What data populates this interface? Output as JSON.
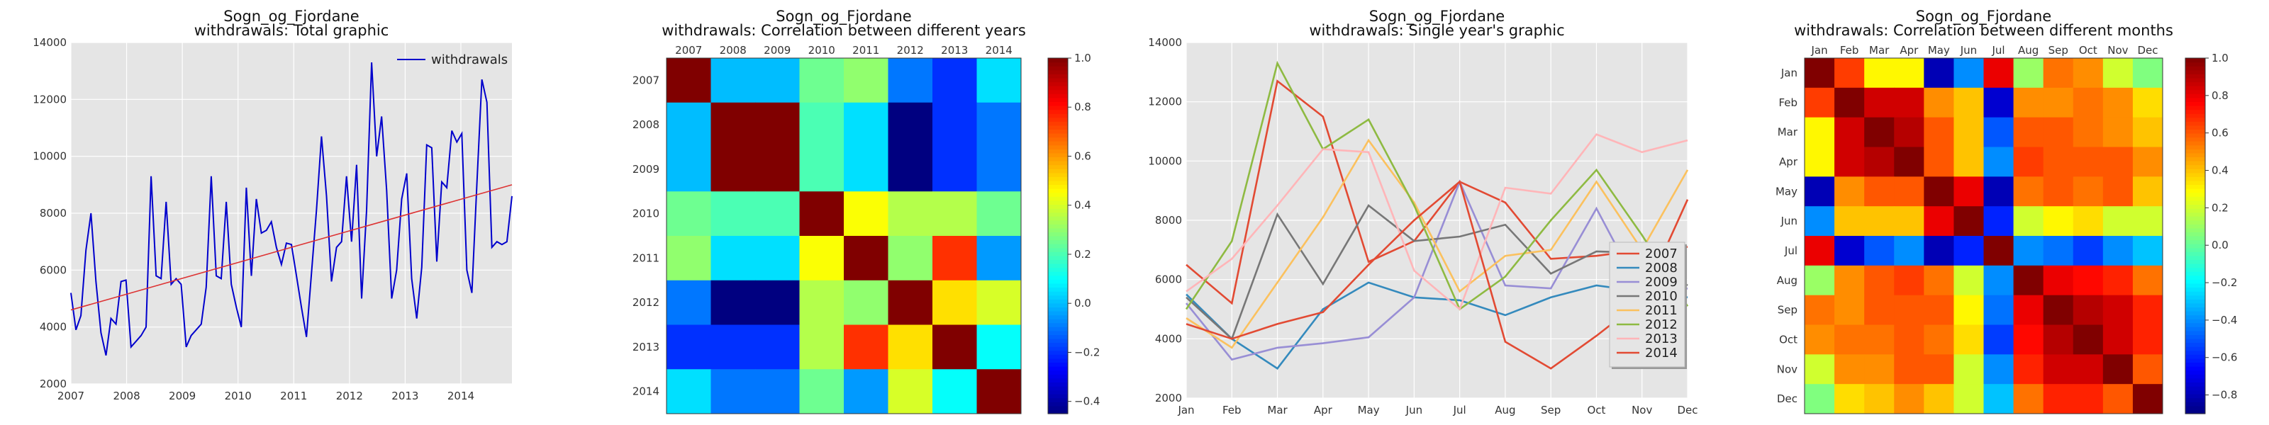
{
  "chart_data": [
    {
      "type": "line",
      "title": "Sogn_og_Fjordane",
      "subtitle": "withdrawals: Total graphic",
      "xlabel": "",
      "ylabel": "",
      "xlim": [
        2007,
        2014.917
      ],
      "ylim": [
        2000,
        14000
      ],
      "xticks": [
        "2007",
        "2008",
        "2009",
        "2010",
        "2011",
        "2012",
        "2013",
        "2014"
      ],
      "yticks": [
        2000,
        4000,
        6000,
        8000,
        10000,
        12000,
        14000
      ],
      "grid": true,
      "legend": "top-right",
      "series": [
        {
          "name": "withdrawals",
          "color": "#0000cc",
          "values": [
            5200,
            3900,
            4400,
            6700,
            8000,
            5600,
            3800,
            3000,
            4300,
            4100,
            5600,
            5650,
            3300,
            3500,
            3700,
            4000,
            9300,
            5800,
            5700,
            8400,
            5500,
            5700,
            5500,
            3300,
            3700,
            3900,
            4100,
            5400,
            9300,
            5800,
            5700,
            8400,
            5500,
            4700,
            4000,
            8900,
            5800,
            8500,
            7300,
            7400,
            7700,
            6800,
            6200,
            6950,
            6900,
            5800,
            4700,
            3650,
            5900,
            8100,
            10700,
            8600,
            5600,
            6800,
            7000,
            9300,
            7000,
            9700,
            5000,
            8100,
            13300,
            10000,
            11400,
            8800,
            5000,
            6000,
            8500,
            9400,
            5700,
            4300,
            6100,
            10400,
            10300,
            6300,
            9100,
            8900,
            10900,
            10500,
            10800,
            6000,
            5200,
            9000,
            12700,
            11900,
            6800,
            7000,
            6900,
            7000,
            8600
          ]
        },
        {
          "name": "",
          "color": "#dd3333",
          "values": [
            4600,
            9000
          ],
          "x": [
            2007,
            2014.917
          ]
        }
      ]
    },
    {
      "type": "heatmap",
      "title": "Sogn_og_Fjordane",
      "subtitle": "withdrawals: Correlation between different years",
      "labels": [
        "2007",
        "2008",
        "2009",
        "2010",
        "2011",
        "2012",
        "2013",
        "2014"
      ],
      "vmin": -0.45,
      "vmax": 1.0,
      "colorbar_ticks": [
        "−0.4",
        "−0.2",
        "0.0",
        "0.2",
        "0.4",
        "0.6",
        "0.8",
        "1.0"
      ],
      "colorbar_values": [
        -0.4,
        -0.2,
        0.0,
        0.2,
        0.4,
        0.6,
        0.8,
        1.0
      ],
      "matrix": [
        [
          1.0,
          0.0,
          0.0,
          0.25,
          0.3,
          -0.1,
          -0.2,
          0.05
        ],
        [
          0.0,
          1.0,
          1.0,
          0.2,
          0.05,
          -0.45,
          -0.2,
          -0.1
        ],
        [
          0.0,
          1.0,
          1.0,
          0.2,
          0.05,
          -0.45,
          -0.2,
          -0.1
        ],
        [
          0.25,
          0.2,
          0.2,
          1.0,
          0.45,
          0.35,
          0.35,
          0.25
        ],
        [
          0.3,
          0.05,
          0.05,
          0.45,
          1.0,
          0.3,
          0.75,
          -0.05
        ],
        [
          -0.1,
          -0.45,
          -0.45,
          0.35,
          0.3,
          1.0,
          0.5,
          0.4
        ],
        [
          -0.2,
          -0.2,
          -0.2,
          0.35,
          0.75,
          0.5,
          1.0,
          0.1
        ],
        [
          0.05,
          -0.1,
          -0.1,
          0.25,
          -0.05,
          0.4,
          0.1,
          1.0
        ]
      ]
    },
    {
      "type": "line",
      "title": "Sogn_og_Fjordane",
      "subtitle": "withdrawals: Single year's graphic",
      "xlabel": "",
      "ylabel": "",
      "categories": [
        "Jan",
        "Feb",
        "Mar",
        "Apr",
        "May",
        "Jun",
        "Jul",
        "Aug",
        "Sep",
        "Oct",
        "Nov",
        "Dec"
      ],
      "ylim": [
        2000,
        14000
      ],
      "yticks": [
        2000,
        4000,
        6000,
        8000,
        10000,
        12000,
        14000
      ],
      "grid": true,
      "legend": "bottom-right",
      "series": [
        {
          "name": "2007",
          "color": "#e24a33",
          "values": [
            6500,
            5200,
            12700,
            11500,
            6600,
            7300,
            9300,
            8600,
            6700,
            6800,
            7000,
            7100
          ]
        },
        {
          "name": "2008",
          "color": "#348abd",
          "values": [
            5500,
            4000,
            3000,
            5000,
            5900,
            5400,
            5300,
            4800,
            5400,
            5800,
            5600,
            5400
          ]
        },
        {
          "name": "2009",
          "color": "#988ed5",
          "values": [
            5200,
            3300,
            3700,
            3850,
            4050,
            5400,
            9300,
            5800,
            5700,
            8400,
            5500,
            5700
          ]
        },
        {
          "name": "2010",
          "color": "#777777",
          "values": [
            5400,
            4000,
            8200,
            5850,
            8500,
            7300,
            7450,
            7850,
            6200,
            6950,
            6900,
            5800
          ]
        },
        {
          "name": "2011",
          "color": "#fbc15e",
          "values": [
            4700,
            3700,
            5900,
            8100,
            10700,
            8600,
            5600,
            6800,
            7000,
            9300,
            7000,
            9700
          ]
        },
        {
          "name": "2012",
          "color": "#8eba42",
          "values": [
            5000,
            7300,
            13300,
            10400,
            11400,
            8500,
            5000,
            6100,
            8000,
            9700,
            7500,
            5100
          ]
        },
        {
          "name": "2013",
          "color": "#ffb5b8",
          "values": [
            5600,
            6700,
            8500,
            10400,
            10300,
            6300,
            5000,
            9100,
            8900,
            10900,
            10300,
            10700
          ]
        },
        {
          "name": "2014",
          "color": "#e24a33",
          "values": [
            4500,
            4000,
            4500,
            4900,
            6500,
            8000,
            9300,
            3900,
            3000,
            4100,
            5300,
            8700
          ]
        }
      ]
    },
    {
      "type": "heatmap",
      "title": "Sogn_og_Fjordane",
      "subtitle": "withdrawals: Correlation between different months",
      "labels": [
        "Jan",
        "Feb",
        "Mar",
        "Apr",
        "May",
        "Jun",
        "Jul",
        "Aug",
        "Sep",
        "Oct",
        "Nov",
        "Dec"
      ],
      "vmin": -0.9,
      "vmax": 1.0,
      "colorbar_ticks": [
        "−0.8",
        "−0.6",
        "−0.4",
        "−0.2",
        "0.0",
        "0.2",
        "0.4",
        "0.6",
        "0.8",
        "1.0"
      ],
      "colorbar_values": [
        -0.8,
        -0.6,
        -0.4,
        -0.2,
        0.0,
        0.2,
        0.4,
        0.6,
        0.8,
        1.0
      ],
      "matrix": [
        [
          1.0,
          0.65,
          0.3,
          0.3,
          -0.8,
          -0.4,
          0.8,
          0.1,
          0.55,
          0.5,
          0.2,
          0.05
        ],
        [
          0.65,
          1.0,
          0.85,
          0.85,
          0.5,
          0.4,
          -0.75,
          0.5,
          0.5,
          0.55,
          0.5,
          0.35
        ],
        [
          0.3,
          0.85,
          1.0,
          0.9,
          0.6,
          0.4,
          -0.5,
          0.6,
          0.6,
          0.55,
          0.5,
          0.4
        ],
        [
          0.3,
          0.85,
          0.9,
          1.0,
          0.6,
          0.4,
          -0.4,
          0.65,
          0.6,
          0.6,
          0.6,
          0.5
        ],
        [
          -0.8,
          0.5,
          0.6,
          0.6,
          1.0,
          0.8,
          -0.8,
          0.55,
          0.6,
          0.55,
          0.6,
          0.4
        ],
        [
          -0.4,
          0.4,
          0.4,
          0.4,
          0.8,
          1.0,
          -0.6,
          0.2,
          0.3,
          0.35,
          0.2,
          0.2
        ],
        [
          0.8,
          -0.75,
          -0.5,
          -0.4,
          -0.8,
          -0.6,
          1.0,
          -0.4,
          -0.45,
          -0.55,
          -0.4,
          -0.3
        ],
        [
          0.1,
          0.5,
          0.6,
          0.65,
          0.55,
          0.2,
          -0.4,
          1.0,
          0.8,
          0.75,
          0.7,
          0.55
        ],
        [
          0.55,
          0.5,
          0.6,
          0.6,
          0.6,
          0.3,
          -0.45,
          0.8,
          1.0,
          0.9,
          0.85,
          0.7
        ],
        [
          0.5,
          0.55,
          0.55,
          0.6,
          0.55,
          0.35,
          -0.55,
          0.75,
          0.9,
          1.0,
          0.85,
          0.7
        ],
        [
          0.2,
          0.5,
          0.5,
          0.6,
          0.6,
          0.2,
          -0.4,
          0.7,
          0.85,
          0.85,
          1.0,
          0.6
        ],
        [
          0.05,
          0.35,
          0.4,
          0.5,
          0.4,
          0.2,
          -0.3,
          0.55,
          0.7,
          0.7,
          0.6,
          1.0
        ]
      ]
    }
  ]
}
